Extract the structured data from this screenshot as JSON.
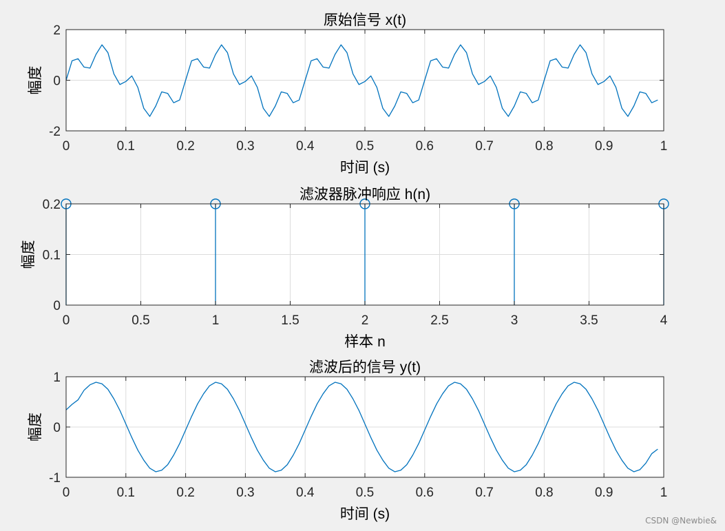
{
  "watermark": "CSDN @Newbie&",
  "colors": {
    "line": "#0072bd",
    "grid": "#dcdcdc",
    "axes": "#262626",
    "background": "#f0f0f0"
  },
  "chart_data": [
    {
      "type": "line",
      "title": "原始信号 x(t)",
      "xlabel": "时间 (s)",
      "ylabel": "幅度",
      "xlim": [
        0,
        1
      ],
      "ylim": [
        -2,
        2
      ],
      "xticks": [
        0,
        0.1,
        0.2,
        0.3,
        0.4,
        0.5,
        0.6,
        0.7,
        0.8,
        0.9,
        1
      ],
      "xtick_labels": [
        "0",
        "0.1",
        "0.2",
        "0.3",
        "0.4",
        "0.5",
        "0.6",
        "0.7",
        "0.8",
        "0.9",
        "1"
      ],
      "yticks": [
        -2,
        0,
        2
      ],
      "ytick_labels": [
        "-2",
        "0",
        "2"
      ],
      "grid": true,
      "series": [
        {
          "x": [
            0,
            0.01,
            0.02,
            0.03,
            0.04,
            0.05,
            0.06,
            0.07,
            0.08,
            0.09,
            0.1,
            0.11,
            0.12,
            0.13,
            0.14,
            0.15,
            0.16,
            0.17,
            0.18,
            0.19,
            0.2,
            0.21,
            0.22,
            0.23,
            0.24,
            0.25,
            0.26,
            0.27,
            0.28,
            0.29,
            0.3,
            0.31,
            0.32,
            0.33,
            0.34,
            0.35,
            0.36,
            0.37,
            0.38,
            0.39,
            0.4,
            0.41,
            0.42,
            0.43,
            0.44,
            0.45,
            0.46,
            0.47,
            0.48,
            0.49,
            0.5,
            0.51,
            0.52,
            0.53,
            0.54,
            0.55,
            0.56,
            0.57,
            0.58,
            0.59,
            0.6,
            0.61,
            0.62,
            0.63,
            0.64,
            0.65,
            0.66,
            0.67,
            0.68,
            0.69,
            0.7,
            0.71,
            0.72,
            0.73,
            0.74,
            0.75,
            0.76,
            0.77,
            0.78,
            0.79,
            0.8,
            0.81,
            0.82,
            0.83,
            0.84,
            0.85,
            0.86,
            0.87,
            0.88,
            0.89,
            0.9,
            0.91,
            0.92,
            0.93,
            0.94,
            0.95,
            0.96,
            0.97,
            0.98,
            0.99
          ],
          "y": [
            0.0,
            0.77,
            0.85,
            0.52,
            0.48,
            1.02,
            1.4,
            1.09,
            0.25,
            -0.17,
            -0.05,
            0.17,
            -0.28,
            -1.11,
            -1.43,
            -1.02,
            -0.46,
            -0.52,
            -0.89,
            -0.78,
            0.0,
            0.77,
            0.85,
            0.52,
            0.48,
            1.02,
            1.4,
            1.09,
            0.25,
            -0.17,
            -0.05,
            0.17,
            -0.28,
            -1.11,
            -1.43,
            -1.02,
            -0.46,
            -0.52,
            -0.89,
            -0.78,
            0.0,
            0.77,
            0.85,
            0.52,
            0.48,
            1.02,
            1.4,
            1.09,
            0.25,
            -0.17,
            -0.05,
            0.17,
            -0.28,
            -1.11,
            -1.43,
            -1.02,
            -0.46,
            -0.52,
            -0.89,
            -0.78,
            0.0,
            0.77,
            0.85,
            0.52,
            0.48,
            1.02,
            1.4,
            1.09,
            0.25,
            -0.17,
            -0.05,
            0.17,
            -0.28,
            -1.11,
            -1.43,
            -1.02,
            -0.46,
            -0.52,
            -0.89,
            -0.78,
            0.0,
            0.77,
            0.85,
            0.52,
            0.48,
            1.02,
            1.4,
            1.09,
            0.25,
            -0.17,
            -0.05,
            0.17,
            -0.28,
            -1.11,
            -1.43,
            -1.02,
            -0.46,
            -0.52,
            -0.89,
            -0.78
          ]
        }
      ]
    },
    {
      "type": "stem",
      "title": "滤波器脉冲响应 h(n)",
      "xlabel": "样本 n",
      "ylabel": "幅度",
      "xlim": [
        0,
        4
      ],
      "ylim": [
        0,
        0.2
      ],
      "xticks": [
        0,
        0.5,
        1,
        1.5,
        2,
        2.5,
        3,
        3.5,
        4
      ],
      "xtick_labels": [
        "0",
        "0.5",
        "1",
        "1.5",
        "2",
        "2.5",
        "3",
        "3.5",
        "4"
      ],
      "yticks": [
        0,
        0.1,
        0.2
      ],
      "ytick_labels": [
        "0",
        "0.1",
        "0.2"
      ],
      "grid": true,
      "series": [
        {
          "x": [
            0,
            1,
            2,
            3,
            4
          ],
          "y": [
            0.2,
            0.2,
            0.2,
            0.2,
            0.2
          ]
        }
      ]
    },
    {
      "type": "line",
      "title": "滤波后的信号 y(t)",
      "xlabel": "时间 (s)",
      "ylabel": "幅度",
      "xlim": [
        0,
        1
      ],
      "ylim": [
        -1,
        1
      ],
      "xticks": [
        0,
        0.1,
        0.2,
        0.3,
        0.4,
        0.5,
        0.6,
        0.7,
        0.8,
        0.9,
        1
      ],
      "xtick_labels": [
        "0",
        "0.1",
        "0.2",
        "0.3",
        "0.4",
        "0.5",
        "0.6",
        "0.7",
        "0.8",
        "0.9",
        "1"
      ],
      "yticks": [
        -1,
        0,
        1
      ],
      "ytick_labels": [
        "-1",
        "0",
        "1"
      ],
      "grid": true,
      "series": [
        {
          "x": [
            0,
            0.01,
            0.02,
            0.03,
            0.04,
            0.05,
            0.06,
            0.07,
            0.08,
            0.09,
            0.1,
            0.11,
            0.12,
            0.13,
            0.14,
            0.15,
            0.16,
            0.17,
            0.18,
            0.19,
            0.2,
            0.21,
            0.22,
            0.23,
            0.24,
            0.25,
            0.26,
            0.27,
            0.28,
            0.29,
            0.3,
            0.31,
            0.32,
            0.33,
            0.34,
            0.35,
            0.36,
            0.37,
            0.38,
            0.39,
            0.4,
            0.41,
            0.42,
            0.43,
            0.44,
            0.45,
            0.46,
            0.47,
            0.48,
            0.49,
            0.5,
            0.51,
            0.52,
            0.53,
            0.54,
            0.55,
            0.56,
            0.57,
            0.58,
            0.59,
            0.6,
            0.61,
            0.62,
            0.63,
            0.64,
            0.65,
            0.66,
            0.67,
            0.68,
            0.69,
            0.7,
            0.71,
            0.72,
            0.73,
            0.74,
            0.75,
            0.76,
            0.77,
            0.78,
            0.79,
            0.8,
            0.81,
            0.82,
            0.83,
            0.84,
            0.85,
            0.86,
            0.87,
            0.88,
            0.89,
            0.9,
            0.91,
            0.92,
            0.93,
            0.94,
            0.95,
            0.96,
            0.97,
            0.98,
            0.99
          ],
          "y": [
            0.34,
            0.45,
            0.54,
            0.73,
            0.84,
            0.89,
            0.86,
            0.75,
            0.56,
            0.33,
            0.06,
            -0.21,
            -0.46,
            -0.66,
            -0.82,
            -0.89,
            -0.86,
            -0.75,
            -0.56,
            -0.33,
            -0.06,
            0.21,
            0.46,
            0.66,
            0.82,
            0.89,
            0.86,
            0.75,
            0.56,
            0.33,
            0.06,
            -0.21,
            -0.46,
            -0.66,
            -0.82,
            -0.89,
            -0.86,
            -0.75,
            -0.56,
            -0.33,
            -0.06,
            0.21,
            0.46,
            0.66,
            0.82,
            0.89,
            0.86,
            0.75,
            0.56,
            0.33,
            0.06,
            -0.21,
            -0.46,
            -0.66,
            -0.82,
            -0.89,
            -0.86,
            -0.75,
            -0.56,
            -0.33,
            -0.06,
            0.21,
            0.46,
            0.66,
            0.82,
            0.89,
            0.86,
            0.75,
            0.56,
            0.33,
            0.06,
            -0.21,
            -0.46,
            -0.66,
            -0.82,
            -0.89,
            -0.86,
            -0.75,
            -0.56,
            -0.33,
            -0.06,
            0.21,
            0.46,
            0.66,
            0.82,
            0.89,
            0.86,
            0.75,
            0.56,
            0.33,
            0.06,
            -0.21,
            -0.46,
            -0.66,
            -0.82,
            -0.89,
            -0.85,
            -0.72,
            -0.53,
            -0.44
          ]
        }
      ]
    }
  ]
}
